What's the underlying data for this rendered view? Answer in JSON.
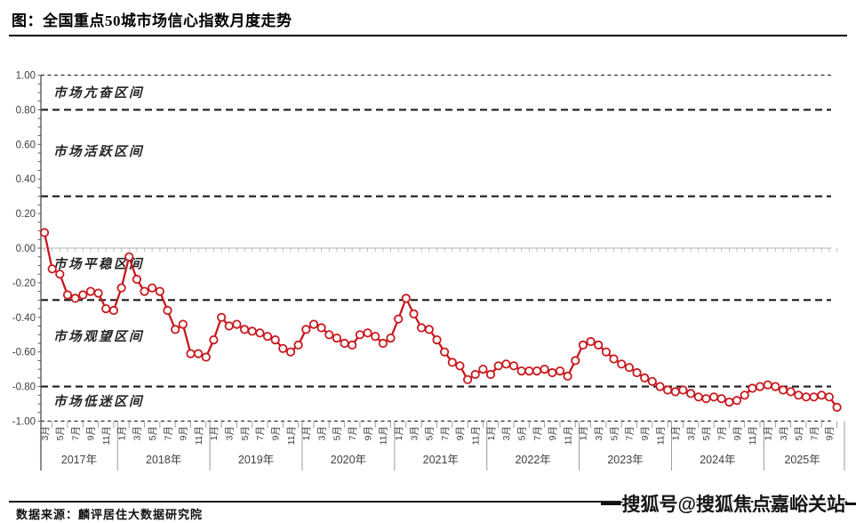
{
  "header": {
    "title": "图：全国重点50城市场信心指数月度走势"
  },
  "footer": {
    "source": "数据来源：麟评居住大数据研究院"
  },
  "watermark": {
    "text": "搜狐号@搜狐焦点嘉峪关站"
  },
  "chart_data": {
    "type": "line",
    "title": "全国重点50城市场信心指数月度走势",
    "ylabel": "",
    "xlabel": "",
    "ylim": [
      -1.0,
      1.0
    ],
    "grid": "dashed-reference-lines",
    "legend": "none",
    "line_color": "#c8191e",
    "marker": "open-circle",
    "y_ticks": [
      1.0,
      0.8,
      0.6,
      0.4,
      0.2,
      0.0,
      -0.2,
      -0.4,
      -0.6,
      -0.8,
      -1.0
    ],
    "reference_lines": [
      1.0,
      0.8,
      0.3,
      -0.3,
      -0.8,
      -1.0
    ],
    "zones": [
      {
        "label": "市场亢奋区间",
        "value": 0.9
      },
      {
        "label": "市场活跃区间",
        "value": 0.56
      },
      {
        "label": "市场平稳区间",
        "value": -0.09
      },
      {
        "label": "市场观望区间",
        "value": -0.51
      },
      {
        "label": "市场低迷区间",
        "value": -0.885
      }
    ],
    "month_label_suffix": "月",
    "year_labels": [
      "2017年",
      "2018年",
      "2019年",
      "2020年",
      "2021年",
      "2022年",
      "2023年",
      "2024年",
      "2025年"
    ],
    "x": [
      "2017-03",
      "2017-04",
      "2017-05",
      "2017-06",
      "2017-07",
      "2017-08",
      "2017-09",
      "2017-10",
      "2017-11",
      "2017-12",
      "2018-01",
      "2018-02",
      "2018-03",
      "2018-04",
      "2018-05",
      "2018-06",
      "2018-07",
      "2018-08",
      "2018-09",
      "2018-10",
      "2018-11",
      "2018-12",
      "2019-01",
      "2019-02",
      "2019-03",
      "2019-04",
      "2019-05",
      "2019-06",
      "2019-07",
      "2019-08",
      "2019-09",
      "2019-10",
      "2019-11",
      "2019-12",
      "2020-01",
      "2020-02",
      "2020-03",
      "2020-04",
      "2020-05",
      "2020-06",
      "2020-07",
      "2020-08",
      "2020-09",
      "2020-10",
      "2020-11",
      "2020-12",
      "2021-01",
      "2021-02",
      "2021-03",
      "2021-04",
      "2021-05",
      "2021-06",
      "2021-07",
      "2021-08",
      "2021-09",
      "2021-10",
      "2021-11",
      "2021-12",
      "2022-01",
      "2022-02",
      "2022-03",
      "2022-04",
      "2022-05",
      "2022-06",
      "2022-07",
      "2022-08",
      "2022-09",
      "2022-10",
      "2022-11",
      "2022-12",
      "2023-01",
      "2023-02",
      "2023-03",
      "2023-04",
      "2023-05",
      "2023-06",
      "2023-07",
      "2023-08",
      "2023-09",
      "2023-10",
      "2023-11",
      "2023-12",
      "2024-01",
      "2024-02",
      "2024-03",
      "2024-04",
      "2024-05",
      "2024-06",
      "2024-07",
      "2024-08",
      "2024-09",
      "2024-10",
      "2024-11",
      "2024-12",
      "2025-01",
      "2025-02",
      "2025-03",
      "2025-04",
      "2025-05",
      "2025-06",
      "2025-07",
      "2025-08",
      "2025-09",
      "2025-10"
    ],
    "values": [
      0.09,
      -0.12,
      -0.15,
      -0.27,
      -0.29,
      -0.27,
      -0.25,
      -0.26,
      -0.35,
      -0.36,
      -0.23,
      -0.05,
      -0.18,
      -0.25,
      -0.23,
      -0.25,
      -0.36,
      -0.47,
      -0.44,
      -0.61,
      -0.61,
      -0.63,
      -0.53,
      -0.4,
      -0.45,
      -0.44,
      -0.47,
      -0.48,
      -0.49,
      -0.51,
      -0.53,
      -0.58,
      -0.6,
      -0.56,
      -0.47,
      -0.44,
      -0.46,
      -0.5,
      -0.52,
      -0.55,
      -0.56,
      -0.5,
      -0.49,
      -0.51,
      -0.55,
      -0.52,
      -0.41,
      -0.29,
      -0.38,
      -0.46,
      -0.47,
      -0.53,
      -0.6,
      -0.66,
      -0.68,
      -0.76,
      -0.73,
      -0.7,
      -0.73,
      -0.68,
      -0.67,
      -0.68,
      -0.71,
      -0.71,
      -0.71,
      -0.7,
      -0.72,
      -0.71,
      -0.74,
      -0.65,
      -0.56,
      -0.54,
      -0.56,
      -0.6,
      -0.64,
      -0.67,
      -0.69,
      -0.72,
      -0.75,
      -0.77,
      -0.8,
      -0.82,
      -0.83,
      -0.82,
      -0.84,
      -0.86,
      -0.87,
      -0.86,
      -0.87,
      -0.89,
      -0.88,
      -0.85,
      -0.81,
      -0.8,
      -0.79,
      -0.8,
      -0.82,
      -0.83,
      -0.85,
      -0.86,
      -0.86,
      -0.85,
      -0.86,
      -0.92
    ]
  }
}
